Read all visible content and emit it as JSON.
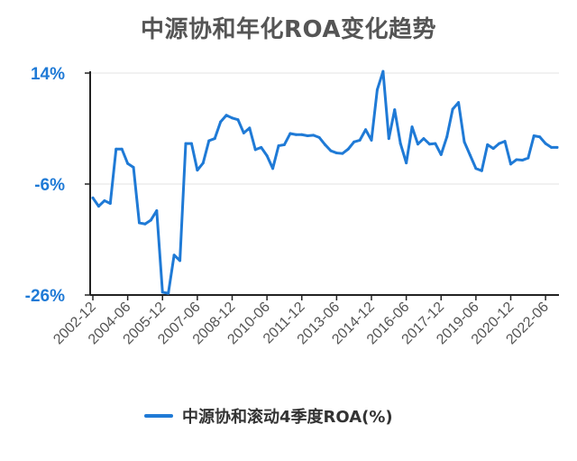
{
  "title": "中源协和年化ROA变化趋势",
  "colors": {
    "line": "#1f7ad6",
    "axis_tick_labels": "#1f7ad6",
    "x_tick_labels": "#555555",
    "title": "#555555",
    "grid": "#e3e3e3",
    "axis": "#222222"
  },
  "chart_data": {
    "type": "line",
    "title": "中源协和年化ROA变化趋势",
    "xlabel": "",
    "ylabel": "",
    "ylim": [
      -26,
      14
    ],
    "yticks": [
      14,
      -6,
      -26
    ],
    "ytick_labels": [
      "14%",
      "-6%",
      "-26%"
    ],
    "grid": true,
    "legend_position": "bottom",
    "x_tick_labels": [
      "2002-12",
      "2004-06",
      "2005-12",
      "2007-06",
      "2008-12",
      "2010-06",
      "2011-12",
      "2013-06",
      "2014-12",
      "2016-06",
      "2017-12",
      "2019-06",
      "2020-12",
      "2022-06"
    ],
    "x": [
      "2002-12",
      "2003-03",
      "2003-06",
      "2003-09",
      "2003-12",
      "2004-03",
      "2004-06",
      "2004-09",
      "2004-12",
      "2005-03",
      "2005-06",
      "2005-09",
      "2005-12",
      "2006-03",
      "2006-06",
      "2006-09",
      "2006-12",
      "2007-03",
      "2007-06",
      "2007-09",
      "2007-12",
      "2008-03",
      "2008-06",
      "2008-09",
      "2008-12",
      "2009-03",
      "2009-06",
      "2009-09",
      "2009-12",
      "2010-03",
      "2010-06",
      "2010-09",
      "2010-12",
      "2011-03",
      "2011-06",
      "2011-09",
      "2011-12",
      "2012-03",
      "2012-06",
      "2012-09",
      "2012-12",
      "2013-03",
      "2013-06",
      "2013-09",
      "2013-12",
      "2014-03",
      "2014-06",
      "2014-09",
      "2014-12",
      "2015-03",
      "2015-06",
      "2015-09",
      "2015-12",
      "2016-03",
      "2016-06",
      "2016-09",
      "2016-12",
      "2017-03",
      "2017-06",
      "2017-09",
      "2017-12",
      "2018-03",
      "2018-06",
      "2018-09",
      "2018-12",
      "2019-03",
      "2019-06",
      "2019-09",
      "2019-12",
      "2020-03",
      "2020-06",
      "2020-09",
      "2020-12",
      "2021-03",
      "2021-06",
      "2021-09",
      "2021-12",
      "2022-03",
      "2022-06",
      "2022-09",
      "2022-12"
    ],
    "series": [
      {
        "name": "中源协和滚动4季度ROA(%)",
        "values": [
          -8.5,
          -10,
          -9,
          -9.5,
          0.3,
          0.3,
          -2.3,
          -3,
          -13,
          -13.2,
          -12.5,
          -10.8,
          -25.5,
          -25.7,
          -18.8,
          -19.8,
          1.3,
          1.3,
          -3.5,
          -2.2,
          1.8,
          2.2,
          5.2,
          6.4,
          5.9,
          5.6,
          3.2,
          4.1,
          0.2,
          0.6,
          -0.9,
          -3.2,
          0.9,
          1.1,
          3.1,
          2.9,
          2.9,
          2.7,
          2.8,
          2.4,
          1.1,
          0,
          -0.4,
          -0.5,
          0.3,
          1.6,
          1.9,
          3.8,
          1.9,
          11,
          14.3,
          2.2,
          7.4,
          1.3,
          -2.2,
          4.3,
          1.2,
          2.2,
          1.2,
          1.3,
          -0.7,
          2.5,
          7.5,
          8.7,
          1.6,
          -0.8,
          -3.2,
          -3.6,
          1.1,
          0.4,
          1.3,
          1.7,
          -2.4,
          -1.6,
          -1.7,
          -1.3,
          2.7,
          2.5,
          1.3,
          0.6,
          0.6
        ]
      }
    ]
  },
  "legend": {
    "label": "中源协和滚动4季度ROA(%)"
  }
}
